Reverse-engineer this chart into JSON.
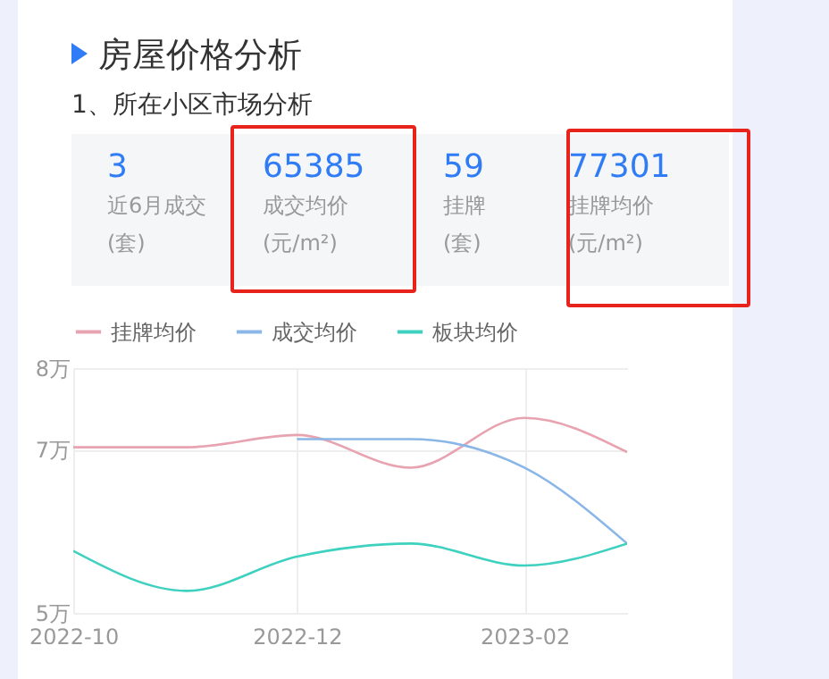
{
  "chart_data": {
    "type": "line",
    "title": "房屋价格分析",
    "subtitle": "1、所在小区市场分析",
    "annotations": [
      "3",
      "近6月成交",
      "(套)",
      "65385",
      "成交均价",
      "(元/m²)",
      "59",
      "挂牌",
      "(套)",
      "77301",
      "挂牌均价",
      "(元/m²)"
    ],
    "x": [
      "2022-10",
      "2022-11",
      "2022-12",
      "2023-01",
      "2023-02",
      "2023-03"
    ],
    "series": [
      {
        "name": "挂牌均价",
        "color": "#e8a3b0",
        "values": [
          7.03,
          7.03,
          7.18,
          6.78,
          7.39,
          6.97
        ]
      },
      {
        "name": "成交均价",
        "color": "#8ab6e8",
        "values": [
          null,
          null,
          7.13,
          7.13,
          6.78,
          5.85
        ]
      },
      {
        "name": "板块均价",
        "color": "#3fd1c0",
        "values": [
          5.76,
          5.27,
          5.69,
          5.85,
          5.58,
          5.85
        ]
      }
    ],
    "xlim": [
      "2022-10",
      "2023-03"
    ],
    "xticks": [
      "2022-10",
      "2022-12",
      "2023-02"
    ],
    "ylim": [
      5,
      8
    ],
    "yticks": [
      {
        "value": 8,
        "label": "8万"
      },
      {
        "value": 7,
        "label": "7万"
      },
      {
        "value": 5,
        "label": "5万"
      }
    ],
    "grid": true,
    "legend": "top",
    "marker": "none",
    "line_style": "solid"
  }
}
